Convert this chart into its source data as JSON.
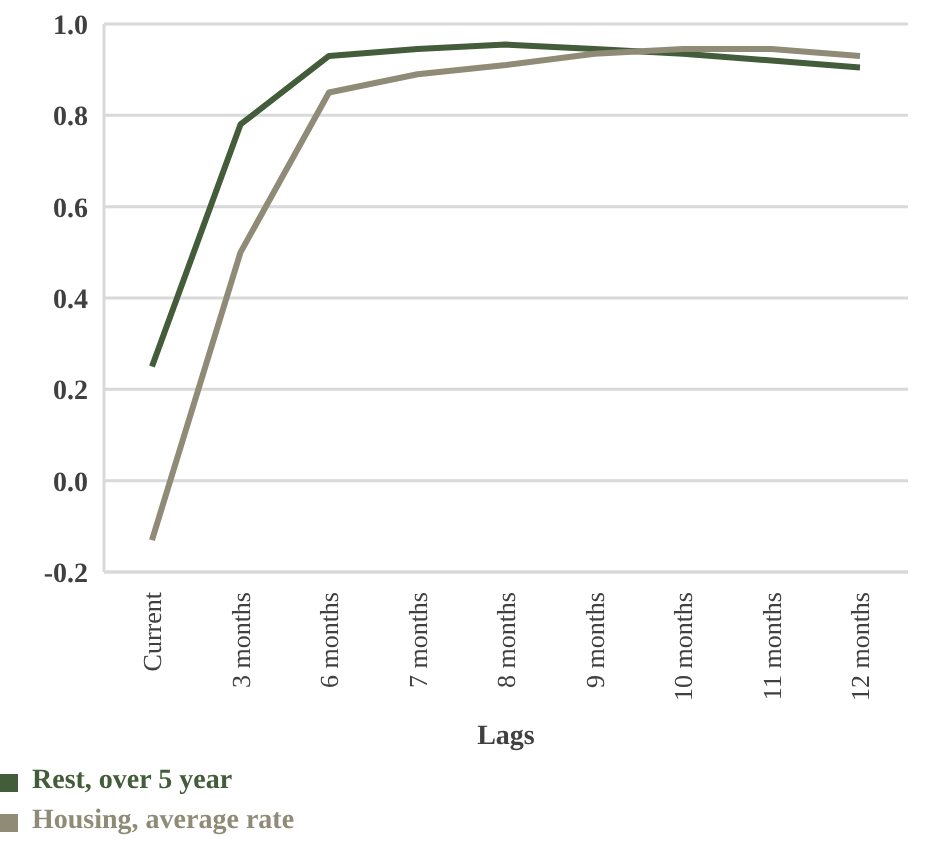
{
  "chart_data": {
    "type": "line",
    "xlabel": "Lags",
    "categories": [
      "Current",
      "3 months",
      "6 months",
      "7 months",
      "8 months",
      "9 months",
      "10 months",
      "11 months",
      "12 months"
    ],
    "series": [
      {
        "name": "Rest, over 5 year",
        "color": "#435c3a",
        "values": [
          0.25,
          0.78,
          0.93,
          0.945,
          0.955,
          0.945,
          0.935,
          0.92,
          0.905
        ]
      },
      {
        "name": "Housing, average rate",
        "color": "#8f8b76",
        "values": [
          -0.13,
          0.5,
          0.85,
          0.89,
          0.91,
          0.935,
          0.945,
          0.945,
          0.93
        ]
      }
    ],
    "ylim": [
      -0.2,
      1.0
    ],
    "yticks": [
      {
        "value": -0.2,
        "label": "-0.2"
      },
      {
        "value": 0,
        "label": "0.0"
      },
      {
        "value": 0.2,
        "label": "0.2"
      },
      {
        "value": 0.4,
        "label": "0.4"
      },
      {
        "value": 0.6,
        "label": "0.6"
      },
      {
        "value": 0.8,
        "label": "0.8"
      },
      {
        "value": 1,
        "label": "1.0"
      }
    ],
    "grid": "y",
    "legend": "bottom left",
    "marker": "none",
    "line_style": "solid"
  }
}
